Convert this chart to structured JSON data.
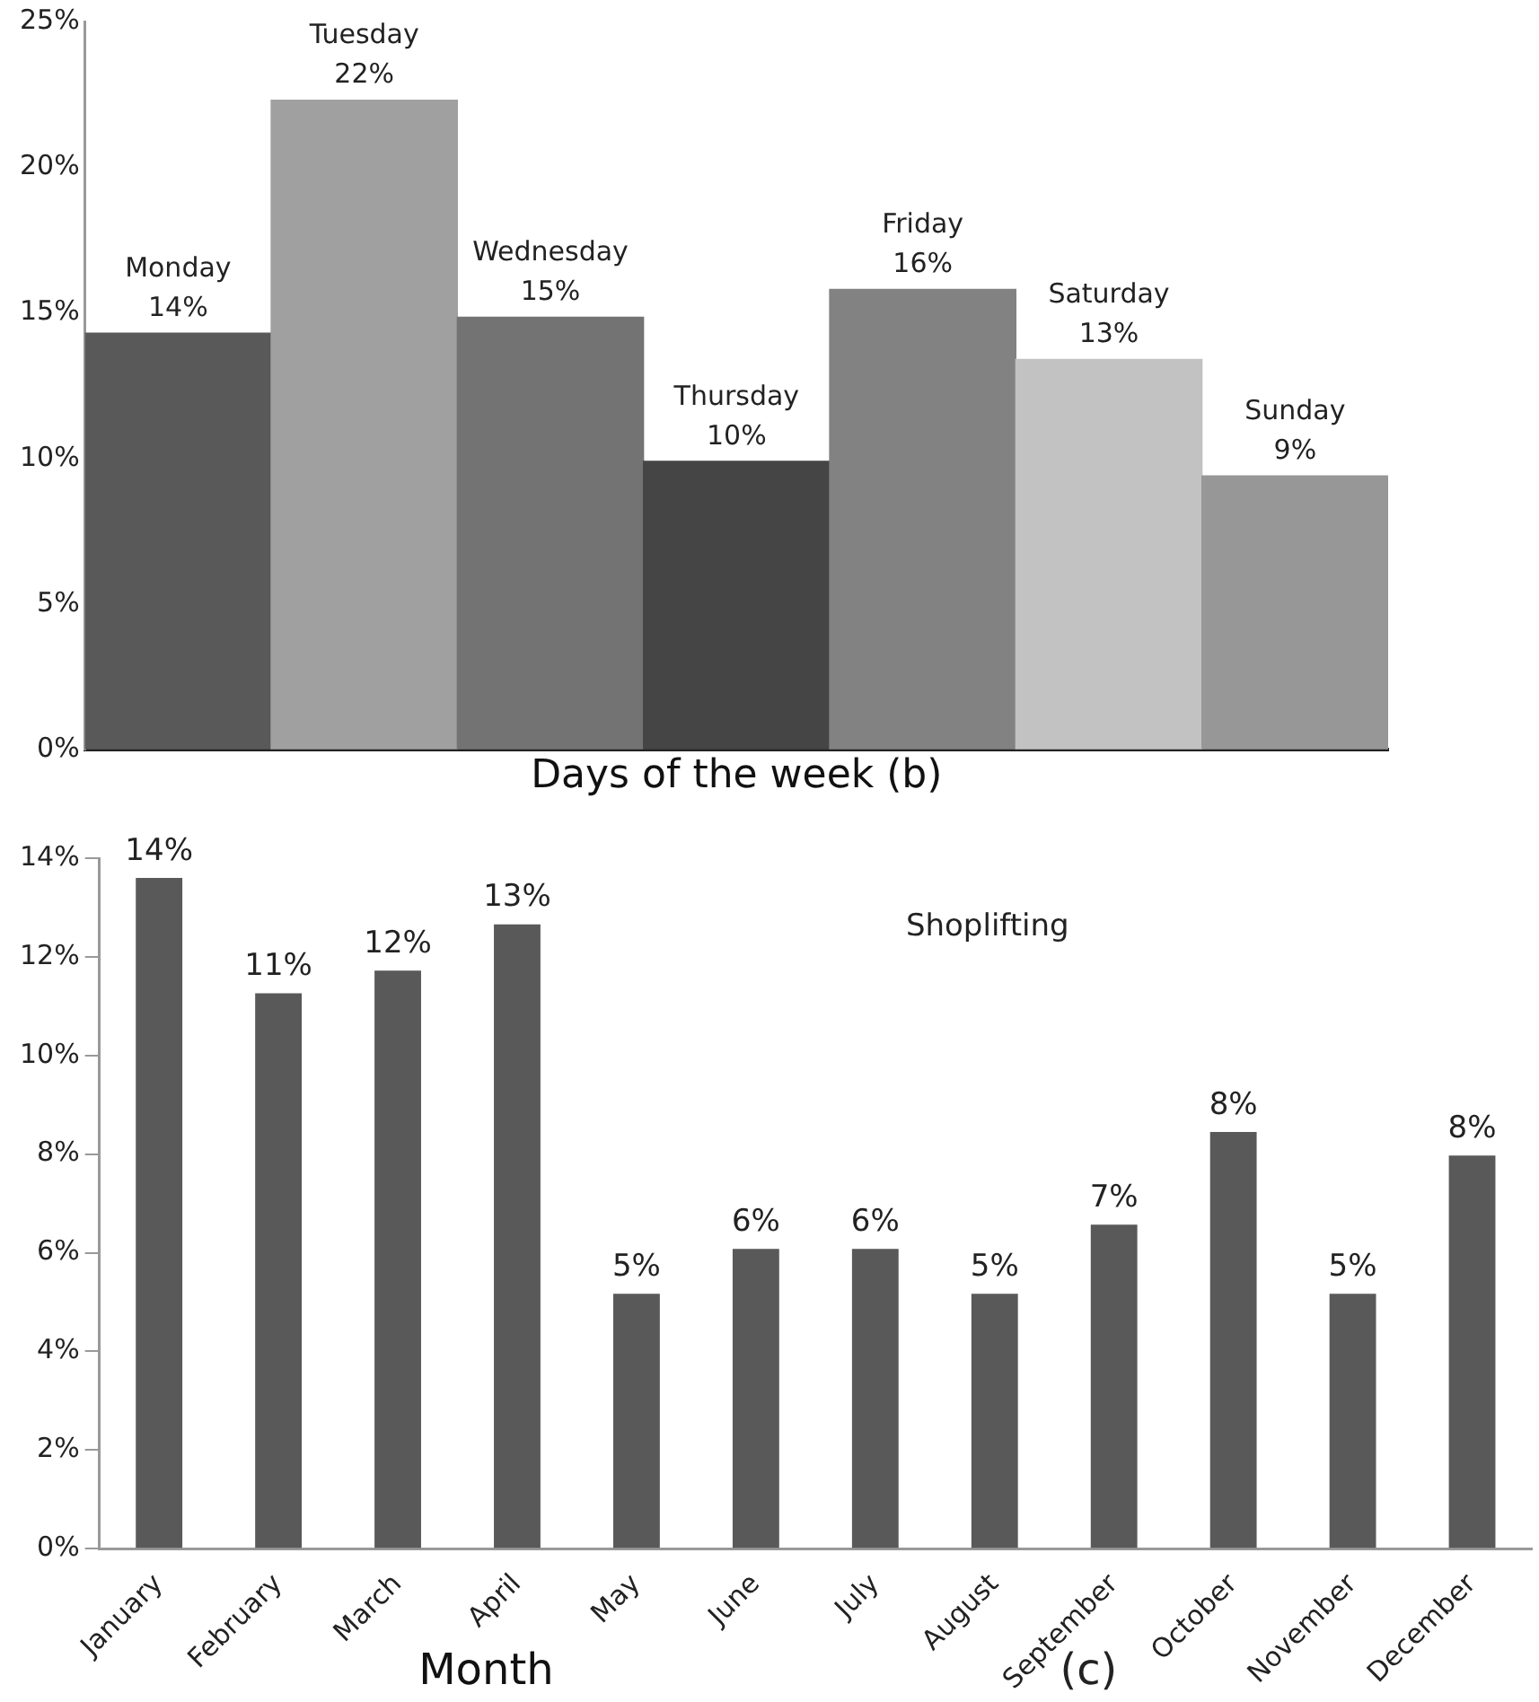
{
  "chart_data": [
    {
      "type": "bar",
      "xlabel": "Days of the week (b)",
      "categories": [
        "Monday",
        "Tuesday",
        "Wednesday",
        "Thursday",
        "Friday",
        "Saturday",
        "Sunday"
      ],
      "values": [
        14.3,
        22.3,
        14.85,
        9.9,
        15.8,
        13.4,
        9.4
      ],
      "colors": [
        "#595959",
        "#a0a0a0",
        "#737373",
        "#454545",
        "#828282",
        "#c2c2c2",
        "#979797"
      ],
      "value_labels": [
        "14%",
        "22%",
        "15%",
        "10%",
        "16%",
        "13%",
        "9%"
      ],
      "ylim": [
        0,
        25
      ],
      "yticks": [
        {
          "value": 0,
          "label": "0%"
        },
        {
          "value": 5,
          "label": "5%"
        },
        {
          "value": 10,
          "label": "10%"
        },
        {
          "value": 15,
          "label": "15%"
        },
        {
          "value": 20,
          "label": "20%"
        },
        {
          "value": 25,
          "label": "25%"
        }
      ],
      "tick_labels": "y",
      "grid": false,
      "legend": false
    },
    {
      "type": "bar",
      "xlabel": "Month",
      "annotations": [
        "Shoplifting",
        "(c)"
      ],
      "categories": [
        "January",
        "February",
        "March",
        "April",
        "May",
        "June",
        "July",
        "August",
        "September",
        "October",
        "November",
        "December"
      ],
      "values": [
        13.6,
        11.26,
        11.72,
        12.66,
        5.17,
        6.08,
        6.08,
        5.17,
        6.57,
        8.45,
        5.17,
        7.97
      ],
      "color": "#595959",
      "value_labels": [
        "14%",
        "11%",
        "12%",
        "13%",
        "5%",
        "6%",
        "6%",
        "5%",
        "7%",
        "8%",
        "5%",
        "8%"
      ],
      "ylim": [
        0,
        14
      ],
      "yticks": [
        {
          "value": 0,
          "label": "0%"
        },
        {
          "value": 2,
          "label": "2%"
        },
        {
          "value": 4,
          "label": "4%"
        },
        {
          "value": 6,
          "label": "6%"
        },
        {
          "value": 8,
          "label": "8%"
        },
        {
          "value": 10,
          "label": "10%"
        },
        {
          "value": 12,
          "label": "12%"
        },
        {
          "value": 14,
          "label": "14%"
        }
      ],
      "grid": false,
      "legend": false
    }
  ]
}
